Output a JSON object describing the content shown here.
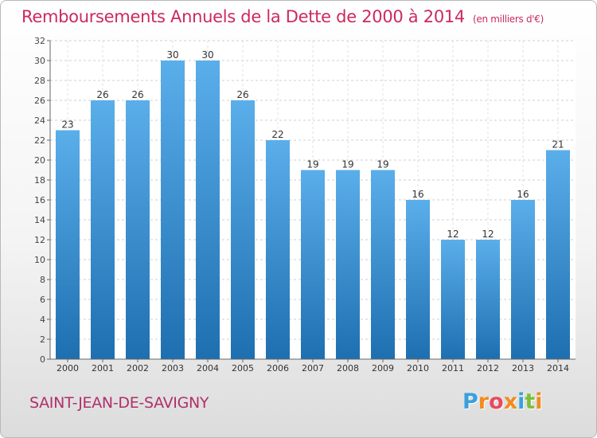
{
  "chart_data": {
    "type": "bar",
    "title": "Remboursements Annuels de la Dette de 2000 à 2014",
    "subtitle": "(en milliers d'€)",
    "categories": [
      "2000",
      "2001",
      "2002",
      "2003",
      "2004",
      "2005",
      "2006",
      "2007",
      "2008",
      "2009",
      "2010",
      "2011",
      "2012",
      "2013",
      "2014"
    ],
    "values": [
      23,
      26,
      26,
      30,
      30,
      26,
      22,
      19,
      19,
      19,
      16,
      12,
      12,
      16,
      21
    ],
    "xlabel": "",
    "ylabel": "",
    "ylim": [
      0,
      32
    ],
    "yticks": [
      0,
      2,
      4,
      6,
      8,
      10,
      12,
      14,
      16,
      18,
      20,
      22,
      24,
      26,
      28,
      30,
      32
    ],
    "grid": true,
    "bar_color_top": "#5aaeea",
    "bar_color_bottom": "#1e6fb0"
  },
  "footer": {
    "location": "SAINT-JEAN-DE-SAVIGNY"
  },
  "logo": {
    "letters": [
      "P",
      "r",
      "o",
      "x",
      "i",
      "t",
      "i"
    ],
    "colors": [
      "#3aa0dc",
      "#f08c1e",
      "#e84a5f",
      "#f08c1e",
      "#3aa0dc",
      "#7bbf3a",
      "#f08c1e"
    ]
  }
}
